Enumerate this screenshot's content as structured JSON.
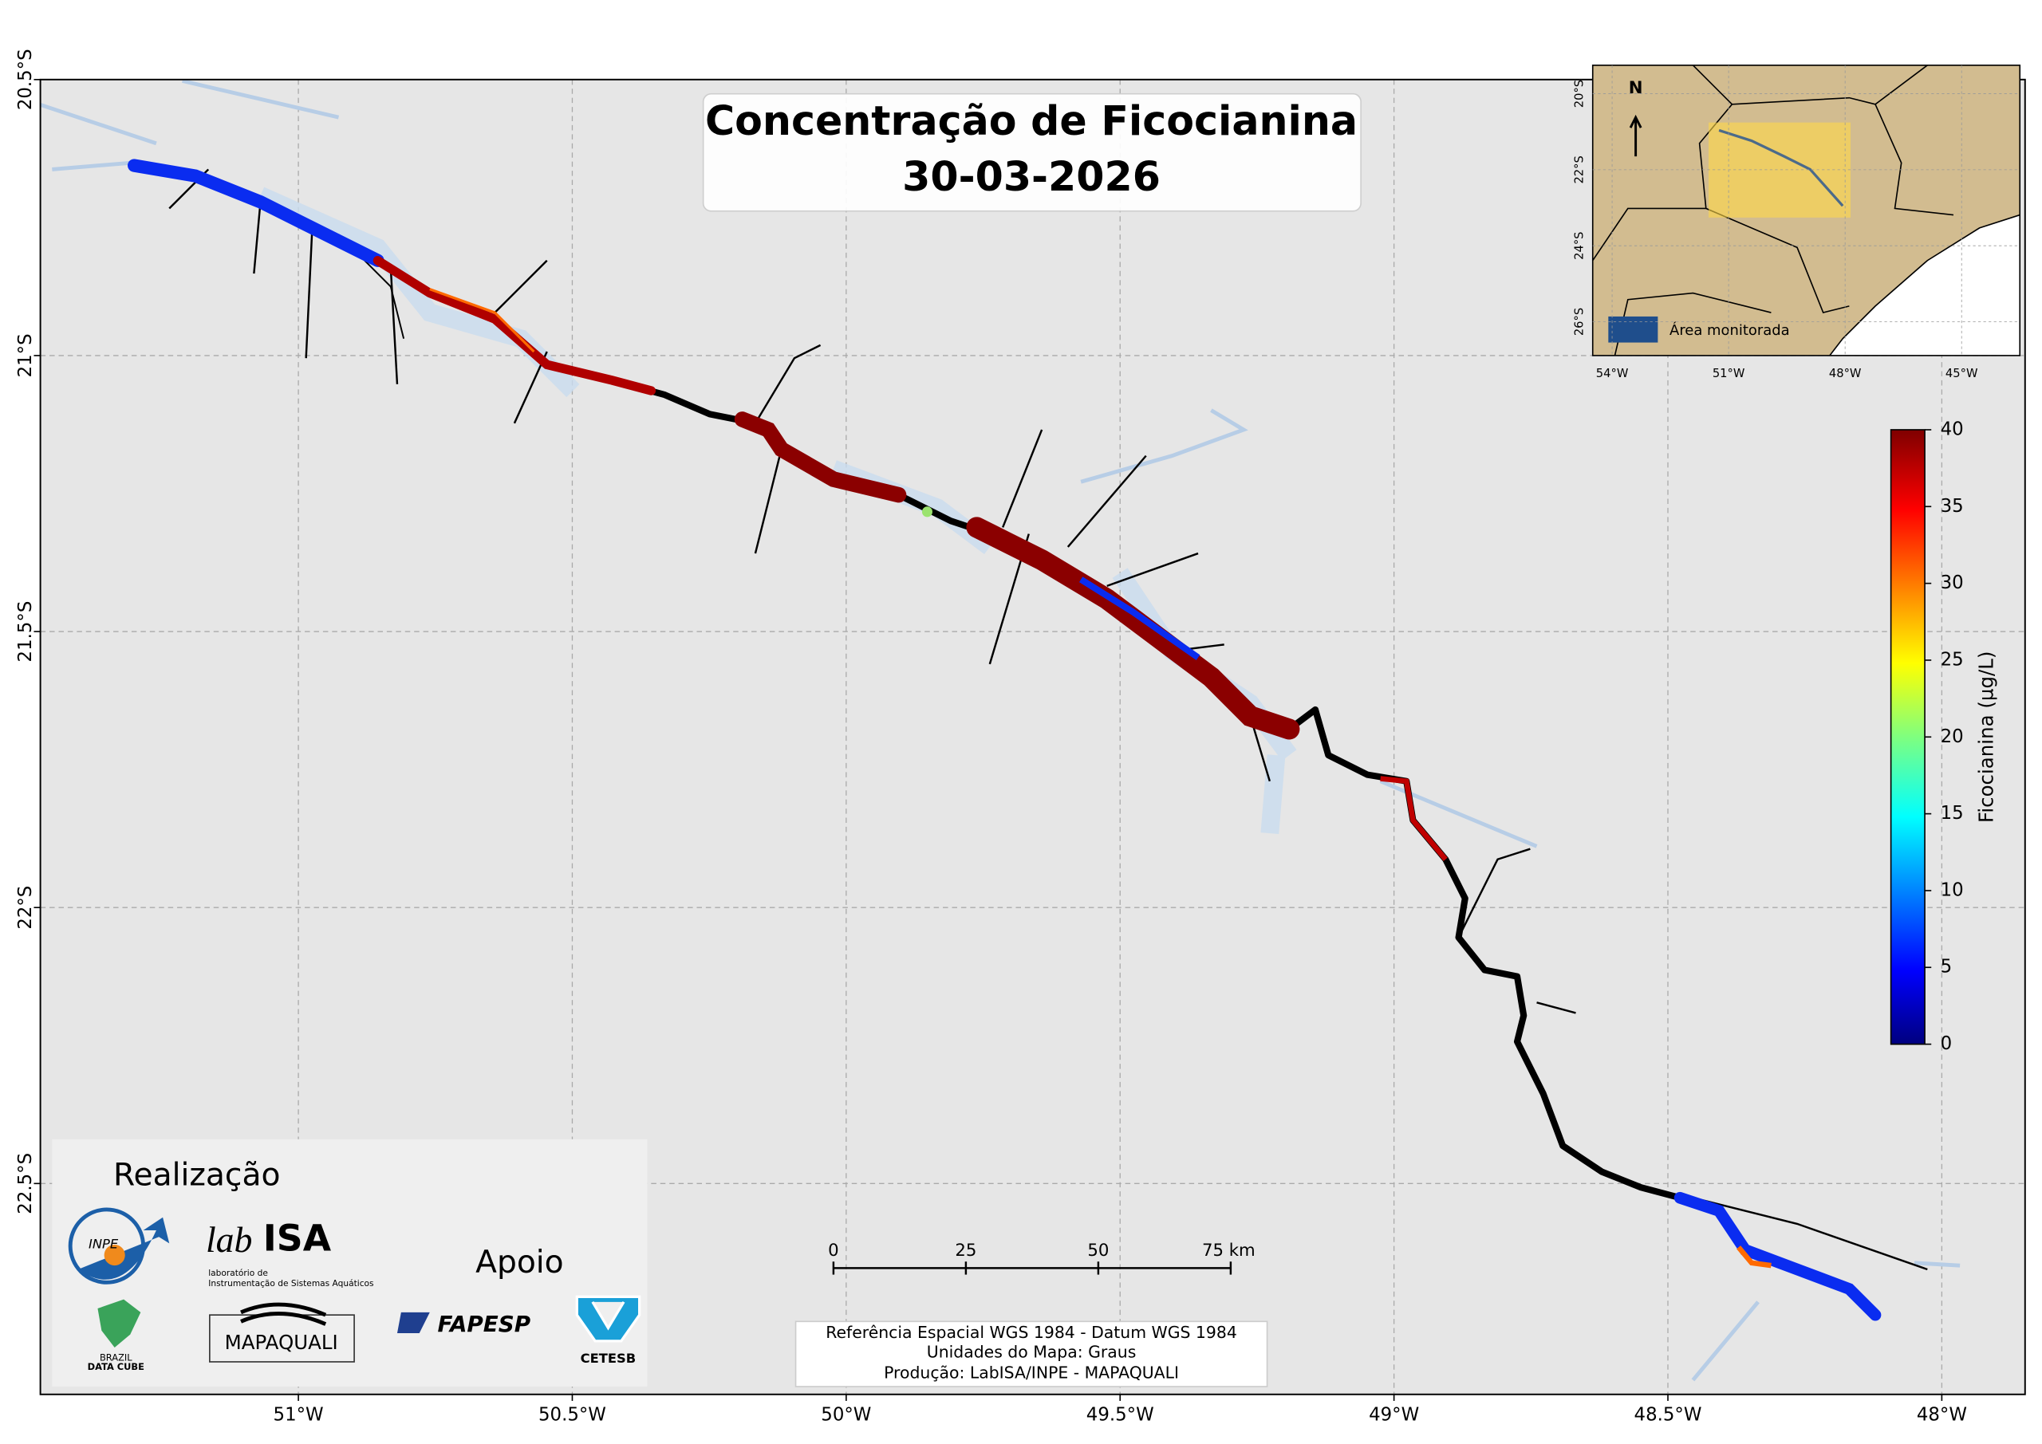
{
  "map": {
    "title": "Concentração de Ficocianina",
    "date": "30-03-2026",
    "xlim": [
      -51.471,
      -47.848
    ],
    "ylim": [
      -20.5,
      -22.882
    ],
    "xticks": [
      {
        "value": -51,
        "label": "51°W"
      },
      {
        "value": -50.5,
        "label": "50.5°W"
      },
      {
        "value": -50,
        "label": "50°W"
      },
      {
        "value": -49.5,
        "label": "49.5°W"
      },
      {
        "value": -49,
        "label": "49°W"
      },
      {
        "value": -48.5,
        "label": "48.5°W"
      },
      {
        "value": -48,
        "label": "48°W"
      }
    ],
    "yticks": [
      {
        "value": -20.5,
        "label": "20.5°S"
      },
      {
        "value": -21,
        "label": "21°S"
      },
      {
        "value": -21.5,
        "label": "21.5°S"
      },
      {
        "value": -22,
        "label": "22°S"
      },
      {
        "value": -22.5,
        "label": "22.5°S"
      }
    ],
    "colorbar": {
      "label": "Ficocianina (µg/L)",
      "lim": [
        0,
        40
      ],
      "ticks": [
        0,
        5,
        10,
        15,
        20,
        25,
        30,
        35,
        40
      ]
    },
    "inset": {
      "xlim": [
        -54.5,
        -43.5
      ],
      "ylim": [
        -19.25,
        -26.89
      ],
      "xticks": [
        {
          "value": -54,
          "label": "54°W"
        },
        {
          "value": -51,
          "label": "51°W"
        },
        {
          "value": -48,
          "label": "48°W"
        },
        {
          "value": -45,
          "label": "45°W"
        }
      ],
      "yticks": [
        {
          "value": -20,
          "label": "20°S"
        },
        {
          "value": -22,
          "label": "22°S"
        },
        {
          "value": -24,
          "label": "24°S"
        },
        {
          "value": -26,
          "label": "26°S"
        }
      ],
      "north": "N",
      "legend": "Área monitorada"
    },
    "scalebar": {
      "ticks": [
        0,
        25,
        50,
        {
          "value": 75,
          "label": "75 km"
        }
      ]
    },
    "footer": [
      "Referência Espacial WGS 1984 - Datum WGS 1984",
      "Unidades do Mapa: Graus",
      "Produção: LabISA/INPE - MAPAQUALI"
    ],
    "logos": {
      "realizacao": "Realização",
      "inpe": "INPE",
      "labisa_lab": "lab",
      "labisa_isa": "ISA",
      "labisa_desc": [
        "laboratório de",
        "Instrumentação de Sistemas Aquáticos"
      ],
      "datacube": [
        "BRAZIL",
        "DATA CUBE"
      ],
      "mapaquali": "MAPAQUALI",
      "apoio": "Apoio",
      "fapesp": "FAPESP",
      "cetesb": "CETESB"
    }
  }
}
